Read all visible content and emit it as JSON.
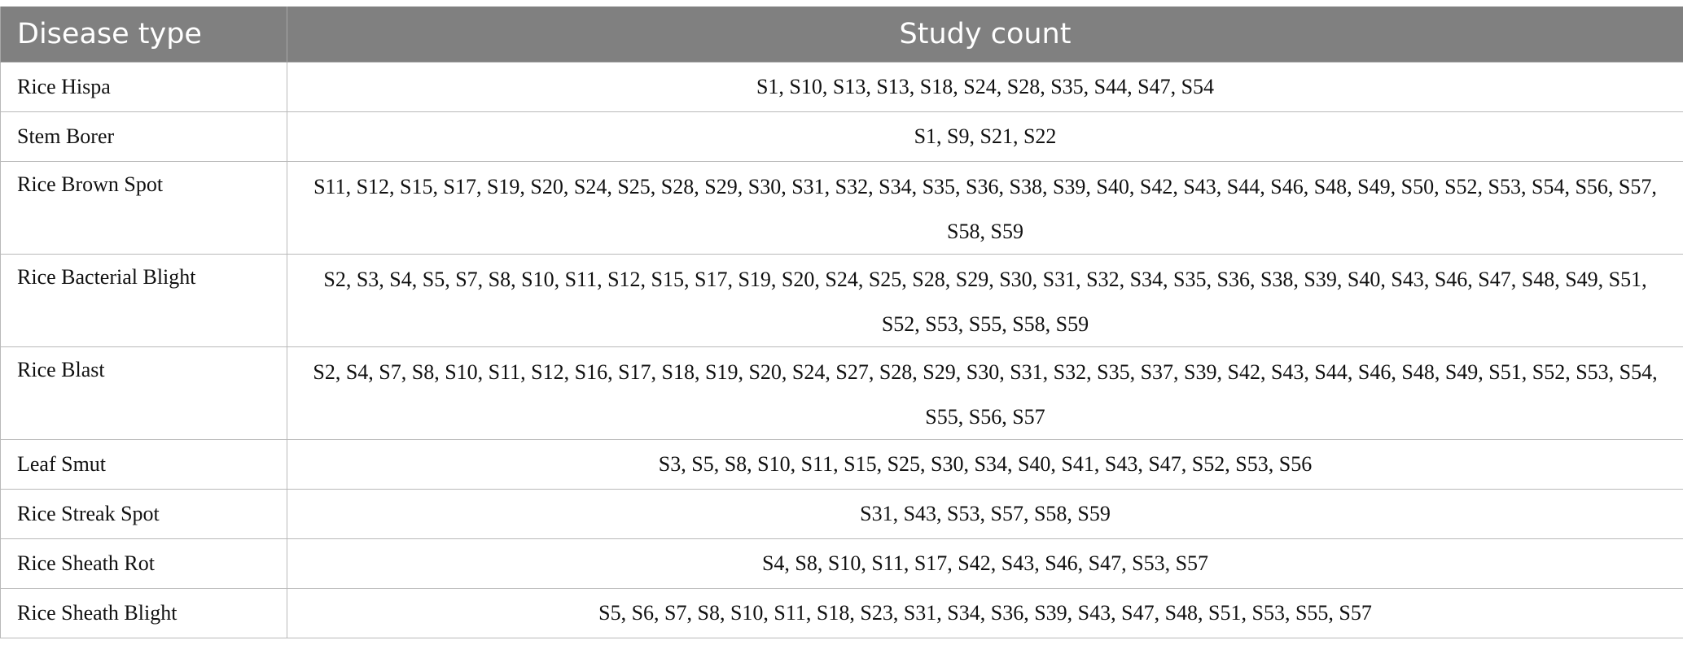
{
  "table": {
    "headers": {
      "disease": "Disease type",
      "studies": "Study count"
    },
    "rows": [
      {
        "disease": "Rice Hispa",
        "studies": "S1, S10, S13, S13, S18, S24, S28, S35, S44, S47, S54"
      },
      {
        "disease": "Stem Borer",
        "studies": "S1, S9, S21, S22"
      },
      {
        "disease": "Rice Brown Spot",
        "studies": "S11, S12, S15, S17, S19, S20, S24, S25, S28, S29, S30, S31, S32, S34, S35, S36, S38, S39, S40, S42, S43, S44, S46, S48, S49, S50, S52, S53, S54, S56, S57, S58, S59"
      },
      {
        "disease": "Rice Bacterial Blight",
        "studies": "S2, S3, S4, S5, S7, S8, S10, S11, S12, S15, S17, S19, S20, S24, S25, S28, S29, S30, S31, S32, S34, S35, S36, S38, S39, S40, S43, S46, S47, S48, S49, S51, S52, S53, S55, S58, S59"
      },
      {
        "disease": "Rice Blast",
        "studies": "S2, S4, S7, S8, S10, S11, S12, S16, S17, S18, S19, S20, S24, S27, S28, S29, S30, S31, S32, S35, S37, S39, S42, S43, S44, S46, S48, S49, S51, S52, S53, S54, S55, S56, S57"
      },
      {
        "disease": "Leaf Smut",
        "studies": "S3, S5, S8, S10, S11, S15, S25, S30, S34, S40, S41, S43, S47, S52, S53, S56"
      },
      {
        "disease": "Rice Streak Spot",
        "studies": "S31, S43, S53, S57, S58, S59"
      },
      {
        "disease": "Rice Sheath Rot",
        "studies": "S4, S8, S10, S11, S17, S42, S43, S46, S47, S53, S57"
      },
      {
        "disease": "Rice Sheath Blight",
        "studies": "S5, S6, S7, S8, S10, S11, S18, S23, S31, S34, S36, S39, S43, S47, S48, S51, S53, S55, S57"
      }
    ]
  },
  "colors": {
    "header_bg": "#808080",
    "header_text": "#ffffff",
    "border": "#b9b9b9"
  }
}
